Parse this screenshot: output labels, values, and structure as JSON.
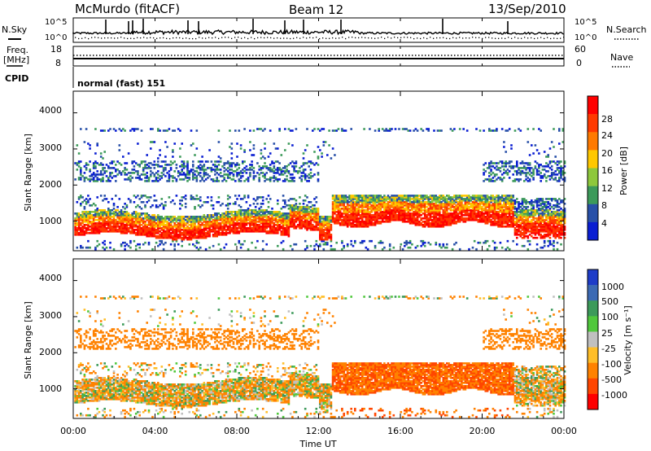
{
  "header": {
    "station": "McMurdo (fitACF)",
    "beam": "Beam 12",
    "date": "13/Sep/2010"
  },
  "top_panels": {
    "nsky_label": "N.Sky",
    "nsearch_label": "N.Search",
    "nsky_ticks": [
      "10^5",
      "10^0"
    ],
    "nsearch_ticks": [
      "10^5",
      "10^0"
    ],
    "freq_label_line1": "Freq.",
    "freq_label_line2": "[MHz]",
    "freq_ticks": [
      "18",
      "8"
    ],
    "nave_label": "Nave",
    "nave_ticks": [
      "60",
      "0"
    ],
    "cpid_label": "CPID",
    "cpid_value": "normal (fast) 151"
  },
  "power_panel": {
    "ylabel": "Slant Range [km]",
    "yticks": [
      "4000",
      "3000",
      "2000",
      "1000"
    ],
    "colorbar_label": "Power [dB]",
    "colorbar_ticks": [
      "28",
      "24",
      "20",
      "16",
      "12",
      "8",
      "4"
    ],
    "colorbar_colors": [
      "#ff0000",
      "#ff3a00",
      "#ff7a00",
      "#ffc800",
      "#8ec83c",
      "#3c9a5a",
      "#2850a8",
      "#0a1ed2"
    ]
  },
  "velocity_panel": {
    "ylabel": "Slant Range [km]",
    "yticks": [
      "4000",
      "3000",
      "2000",
      "1000"
    ],
    "colorbar_label": "Velocity [m s⁻¹]",
    "colorbar_ticks": [
      "1000",
      "500",
      "100",
      "25",
      "-25",
      "-100",
      "-500",
      "-1000"
    ],
    "colorbar_colors": [
      "#1e3cc8",
      "#3c6ab4",
      "#3c9a5a",
      "#50c83c",
      "#c0c0c0",
      "#ffbe28",
      "#ff8200",
      "#ff4600",
      "#ff0000"
    ]
  },
  "x_axis": {
    "label": "Time UT",
    "ticks": [
      "00:00",
      "04:00",
      "08:00",
      "12:00",
      "16:00",
      "20:00",
      "00:00"
    ]
  },
  "chart_data": {
    "type": "heatmap",
    "x_range_hours": [
      0,
      24
    ],
    "y_range_km": [
      180,
      4600
    ],
    "power_color_range_db": [
      0,
      32
    ],
    "bands": [
      {
        "name": "",
        "range_km": [
          500,
          1000
        ]
      },
      {
        "name": "",
        "range_km": [
          1000,
          1700
        ]
      },
      {
        "name": "",
        "range_km": [
          2000,
          2600
        ]
      },
      {
        "name": "",
        "range_km": [
          3500,
          3500
        ]
      }
    ]
  }
}
